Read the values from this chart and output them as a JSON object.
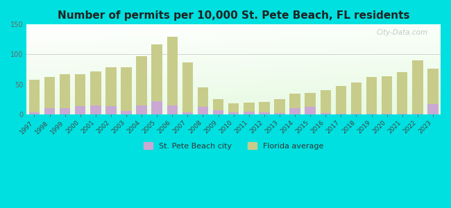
{
  "title": "Number of permits per 10,000 St. Pete Beach, FL residents",
  "years": [
    1997,
    1998,
    1999,
    2000,
    2001,
    2002,
    2003,
    2004,
    2005,
    2006,
    2007,
    2008,
    2009,
    2010,
    2011,
    2012,
    2013,
    2014,
    2015,
    2016,
    2017,
    2018,
    2019,
    2020,
    2021,
    2022,
    2023
  ],
  "city_values": [
    3,
    10,
    10,
    13,
    15,
    14,
    5,
    15,
    22,
    15,
    3,
    12,
    7,
    3,
    4,
    3,
    2,
    10,
    12,
    2,
    1,
    1,
    1,
    1,
    1,
    1,
    17
  ],
  "fl_values": [
    58,
    62,
    67,
    67,
    72,
    78,
    79,
    97,
    117,
    130,
    87,
    45,
    25,
    18,
    19,
    20,
    25,
    34,
    35,
    40,
    47,
    53,
    62,
    63,
    70,
    90,
    76
  ],
  "city_color": "#c9a8d4",
  "fl_color": "#c8cc8a",
  "outer_bg": "#00e0e0",
  "ylim": [
    0,
    150
  ],
  "yticks": [
    0,
    50,
    100,
    150
  ],
  "watermark": "City-Data.com",
  "legend_city": "St. Pete Beach city",
  "legend_fl": "Florida average",
  "title_fontsize": 11,
  "bar_width": 0.7
}
